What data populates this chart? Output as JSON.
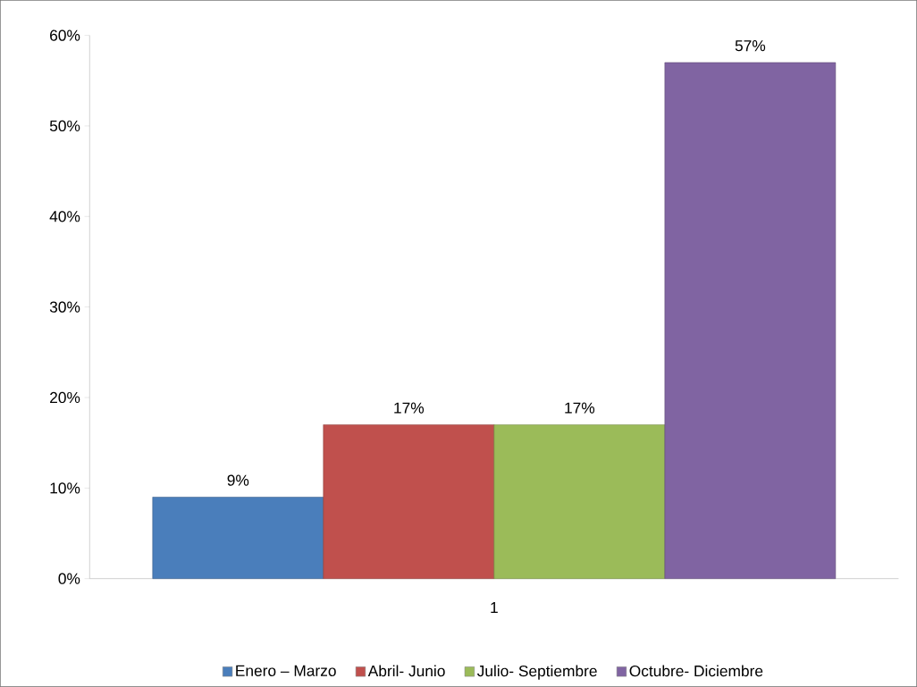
{
  "chart_data": {
    "type": "bar",
    "categories": [
      "1"
    ],
    "series": [
      {
        "name": "Enero – Marzo",
        "color": "#4a7ebb",
        "values": [
          9
        ],
        "value_labels": [
          "9%"
        ]
      },
      {
        "name": "Abril- Junio",
        "color": "#c0504d",
        "values": [
          17
        ],
        "value_labels": [
          "17%"
        ]
      },
      {
        "name": "Julio- Septiembre",
        "color": "#9bbb59",
        "values": [
          17
        ],
        "value_labels": [
          "17%"
        ]
      },
      {
        "name": "Octubre- Diciembre",
        "color": "#8064a2",
        "values": [
          57
        ],
        "value_labels": [
          "57%"
        ]
      }
    ],
    "ylim": [
      0,
      60
    ],
    "yticks": [
      {
        "value": 0,
        "label": "0%"
      },
      {
        "value": 10,
        "label": "10%"
      },
      {
        "value": 20,
        "label": "20%"
      },
      {
        "value": 30,
        "label": "30%"
      },
      {
        "value": 40,
        "label": "40%"
      },
      {
        "value": 50,
        "label": "50%"
      },
      {
        "value": 60,
        "label": "60%"
      }
    ],
    "legend": "bottom"
  }
}
